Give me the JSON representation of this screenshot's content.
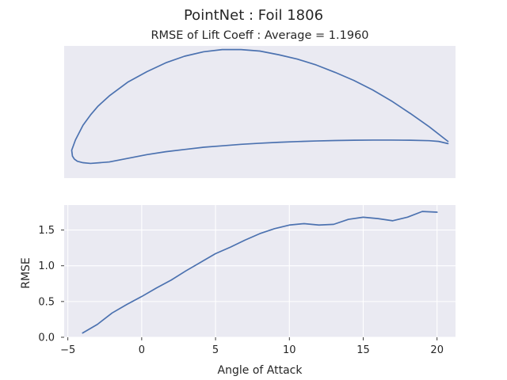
{
  "figure": {
    "suptitle": "PointNet   :   Foil 1806",
    "title": "RMSE of Lift Coeff : Average = 1.1960"
  },
  "chart_data": [
    {
      "type": "line",
      "name": "airfoil-shape",
      "axes_visible": false,
      "grid": false,
      "xlim": [
        -0.02,
        1.02
      ],
      "ylim": [
        -0.02,
        0.16
      ],
      "x": [
        1.0,
        0.95,
        0.9,
        0.85,
        0.8,
        0.75,
        0.7,
        0.65,
        0.6,
        0.55,
        0.5,
        0.45,
        0.4,
        0.35,
        0.3,
        0.25,
        0.2,
        0.15,
        0.1,
        0.07,
        0.05,
        0.03,
        0.02,
        0.01,
        0.005,
        0.0,
        0.002,
        0.007,
        0.015,
        0.03,
        0.05,
        0.1,
        0.15,
        0.2,
        0.25,
        0.3,
        0.35,
        0.4,
        0.45,
        0.5,
        0.55,
        0.6,
        0.65,
        0.7,
        0.75,
        0.8,
        0.85,
        0.9,
        0.95,
        0.975,
        1.0
      ],
      "y": [
        0.03,
        0.05,
        0.068,
        0.085,
        0.1,
        0.113,
        0.124,
        0.134,
        0.142,
        0.148,
        0.153,
        0.155,
        0.155,
        0.152,
        0.146,
        0.137,
        0.125,
        0.111,
        0.092,
        0.078,
        0.066,
        0.052,
        0.042,
        0.032,
        0.025,
        0.018,
        0.01,
        0.006,
        0.003,
        0.001,
        0.0,
        0.002,
        0.007,
        0.012,
        0.016,
        0.019,
        0.022,
        0.024,
        0.026,
        0.0275,
        0.0288,
        0.0298,
        0.0306,
        0.0312,
        0.0316,
        0.0318,
        0.0318,
        0.0316,
        0.031,
        0.03,
        0.027
      ]
    },
    {
      "type": "line",
      "name": "rmse-vs-aoa",
      "xlabel": "Angle of Attack",
      "ylabel": "RMSE",
      "grid": true,
      "xlim": [
        -5.25,
        21.25
      ],
      "ylim": [
        0.0,
        1.85
      ],
      "xticks": [
        -5,
        0,
        5,
        10,
        15,
        20
      ],
      "yticks": [
        0.0,
        0.5,
        1.0,
        1.5
      ],
      "x": [
        -4,
        -3,
        -2,
        -1,
        0,
        1,
        2,
        3,
        4,
        5,
        6,
        7,
        8,
        9,
        10,
        11,
        12,
        13,
        14,
        15,
        16,
        17,
        18,
        19,
        20
      ],
      "y": [
        0.06,
        0.18,
        0.34,
        0.46,
        0.57,
        0.69,
        0.8,
        0.93,
        1.05,
        1.17,
        1.26,
        1.36,
        1.45,
        1.52,
        1.57,
        1.59,
        1.57,
        1.58,
        1.65,
        1.68,
        1.66,
        1.63,
        1.68,
        1.76,
        1.75
      ]
    }
  ],
  "colors": {
    "line": "#4c72b0",
    "panel": "#eaeaf2",
    "grid": "#ffffff",
    "text": "#262626"
  }
}
